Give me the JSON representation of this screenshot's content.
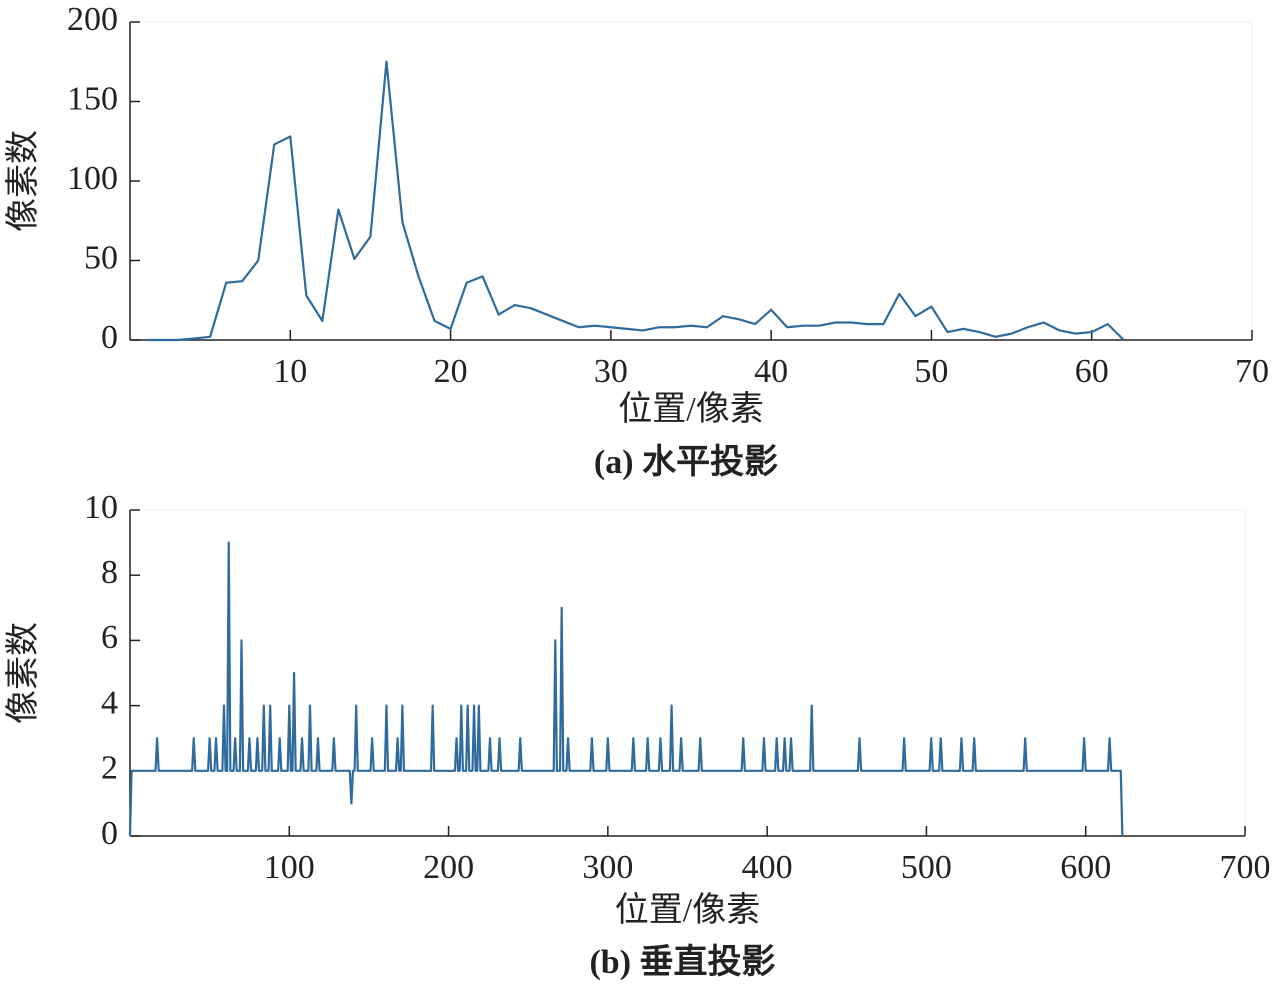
{
  "chart_data": [
    {
      "type": "line",
      "title": "(a) 水平投影",
      "x_label": "位置/像素",
      "y_label": "像素数",
      "color": "#2f6b9c",
      "x": [
        1,
        2,
        3,
        4,
        5,
        6,
        7,
        8,
        9,
        10,
        11,
        12,
        13,
        14,
        15,
        16,
        17,
        18,
        19,
        20,
        21,
        22,
        23,
        24,
        25,
        26,
        27,
        28,
        29,
        30,
        31,
        32,
        33,
        34,
        35,
        36,
        37,
        38,
        39,
        40,
        41,
        42,
        43,
        44,
        45,
        46,
        47,
        48,
        49,
        50,
        51,
        52,
        53,
        54,
        55,
        56,
        57,
        58,
        59,
        60,
        61,
        62
      ],
      "values": [
        0,
        0,
        0,
        1,
        2,
        36,
        37,
        50,
        123,
        128,
        28,
        12,
        82,
        51,
        65,
        175,
        74,
        40,
        12,
        7,
        36,
        40,
        16,
        22,
        20,
        16,
        12,
        8,
        9,
        8,
        7,
        6,
        8,
        8,
        9,
        8,
        15,
        13,
        10,
        19,
        8,
        9,
        9,
        11,
        11,
        10,
        10,
        29,
        15,
        21,
        5,
        7,
        5,
        2,
        4,
        8,
        11,
        6,
        4,
        5,
        10,
        0
      ],
      "xlim": [
        0,
        70
      ],
      "xticks": [
        10,
        20,
        30,
        40,
        50,
        60,
        70
      ],
      "ylim": [
        0,
        200
      ],
      "yticks": [
        0,
        50,
        100,
        150,
        200
      ]
    },
    {
      "type": "line",
      "title": "(b) 垂直投影",
      "x_label": "位置/像素",
      "y_label": "像素数",
      "color": "#2f6b9c",
      "x": [
        0,
        1,
        16,
        17,
        18,
        39,
        40,
        41,
        49,
        50,
        51,
        53,
        54,
        55,
        58,
        59,
        60,
        61,
        62,
        63,
        65,
        66,
        67,
        69,
        70,
        71,
        74,
        75,
        76,
        79,
        80,
        81,
        83,
        84,
        85,
        87,
        88,
        89,
        93,
        94,
        95,
        99,
        100,
        101,
        102,
        103,
        104,
        107,
        108,
        109,
        112,
        113,
        114,
        117,
        118,
        119,
        127,
        128,
        129,
        138,
        139,
        140,
        141,
        142,
        143,
        151,
        152,
        153,
        160,
        161,
        162,
        167,
        168,
        169,
        170,
        171,
        172,
        189,
        190,
        191,
        204,
        205,
        206,
        207,
        208,
        209,
        211,
        212,
        213,
        215,
        216,
        217,
        218,
        219,
        220,
        225,
        226,
        227,
        231,
        232,
        233,
        244,
        245,
        246,
        266,
        267,
        268,
        270,
        271,
        272,
        274,
        275,
        276,
        289,
        290,
        291,
        299,
        300,
        301,
        315,
        316,
        317,
        324,
        325,
        326,
        332,
        333,
        334,
        339,
        340,
        341,
        345,
        346,
        347,
        357,
        358,
        359,
        384,
        385,
        386,
        397,
        398,
        399,
        405,
        406,
        407,
        410,
        411,
        412,
        414,
        415,
        416,
        427,
        428,
        429,
        457,
        458,
        459,
        485,
        486,
        487,
        502,
        503,
        504,
        508,
        509,
        510,
        521,
        522,
        523,
        529,
        530,
        531,
        561,
        562,
        563,
        598,
        599,
        600,
        614,
        615,
        616,
        622,
        623
      ],
      "values": [
        0,
        2,
        2,
        3,
        2,
        2,
        3,
        2,
        2,
        3,
        2,
        2,
        3,
        2,
        2,
        4,
        2,
        2,
        9,
        2,
        2,
        3,
        2,
        2,
        6,
        2,
        2,
        3,
        2,
        2,
        3,
        2,
        2,
        4,
        2,
        2,
        4,
        2,
        2,
        3,
        2,
        2,
        4,
        2,
        2,
        5,
        2,
        2,
        3,
        2,
        2,
        4,
        2,
        2,
        3,
        2,
        2,
        3,
        2,
        2,
        1,
        2,
        2,
        4,
        2,
        2,
        3,
        2,
        2,
        4,
        2,
        2,
        3,
        2,
        2,
        4,
        2,
        2,
        4,
        2,
        2,
        3,
        2,
        2,
        4,
        2,
        2,
        4,
        2,
        2,
        4,
        2,
        2,
        4,
        2,
        2,
        3,
        2,
        2,
        3,
        2,
        2,
        3,
        2,
        2,
        6,
        2,
        2,
        7,
        2,
        2,
        3,
        2,
        2,
        3,
        2,
        2,
        3,
        2,
        2,
        3,
        2,
        2,
        3,
        2,
        2,
        3,
        2,
        2,
        4,
        2,
        2,
        3,
        2,
        2,
        3,
        2,
        2,
        3,
        2,
        2,
        3,
        2,
        2,
        3,
        2,
        2,
        3,
        2,
        2,
        3,
        2,
        2,
        4,
        2,
        2,
        3,
        2,
        2,
        3,
        2,
        2,
        3,
        2,
        2,
        3,
        2,
        2,
        3,
        2,
        2,
        3,
        2,
        2,
        3,
        2,
        2,
        3,
        2,
        2,
        3,
        2,
        2,
        0
      ],
      "xlim": [
        0,
        700
      ],
      "xticks": [
        100,
        200,
        300,
        400,
        500,
        600,
        700
      ],
      "ylim": [
        0,
        10
      ],
      "yticks": [
        0,
        2,
        4,
        6,
        8,
        10
      ]
    }
  ]
}
